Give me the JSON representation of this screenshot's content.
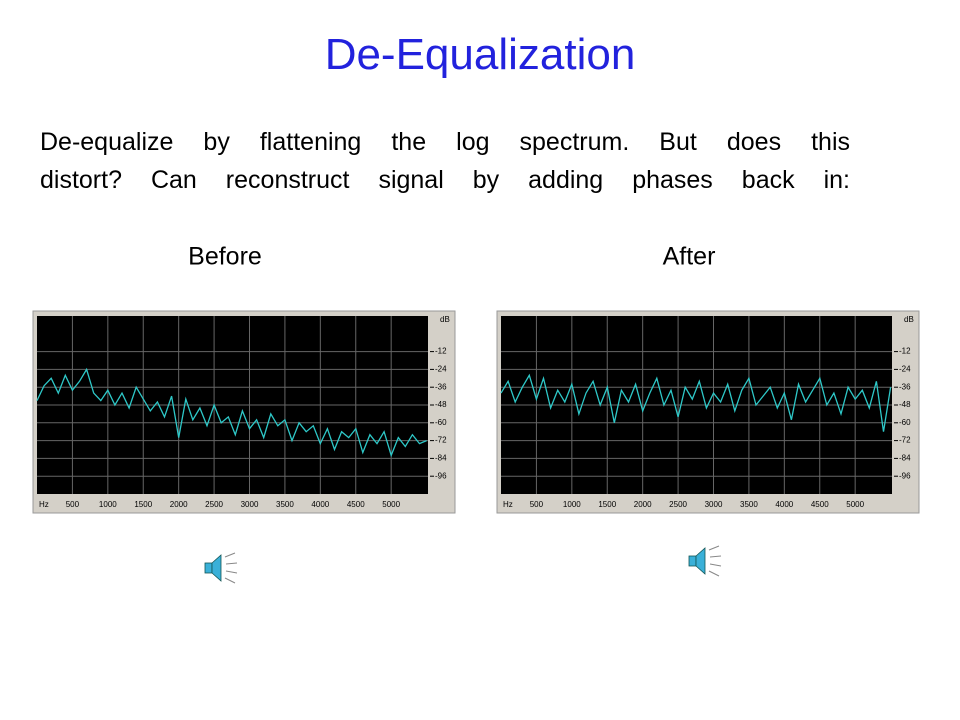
{
  "title": "De-Equalization",
  "text": [
    "De-equalize by flattening the log spectrum.  But does this",
    "distort? Can reconstruct signal by adding phases back in:"
  ],
  "chart_data": [
    {
      "type": "line",
      "title": "Before",
      "xlabel": "Hz",
      "ylabel": "dB",
      "color": "#2ec8c8",
      "grid": true,
      "xlim": [
        0,
        5520
      ],
      "ylim": [
        -108,
        12
      ],
      "xticks": [
        500,
        1000,
        1500,
        2000,
        2500,
        3000,
        3500,
        4000,
        4500,
        5000
      ],
      "yticks": [
        -12,
        -24,
        -36,
        -48,
        -60,
        -72,
        -84,
        -96
      ],
      "x": [
        0,
        100,
        200,
        300,
        400,
        500,
        600,
        700,
        800,
        900,
        1000,
        1100,
        1200,
        1300,
        1400,
        1500,
        1600,
        1700,
        1800,
        1900,
        2000,
        2100,
        2200,
        2300,
        2400,
        2500,
        2600,
        2700,
        2800,
        2900,
        3000,
        3100,
        3200,
        3300,
        3400,
        3500,
        3600,
        3700,
        3800,
        3900,
        4000,
        4100,
        4200,
        4300,
        4400,
        4500,
        4600,
        4700,
        4800,
        4900,
        5000,
        5100,
        5200,
        5300,
        5400,
        5500
      ],
      "values": [
        -45,
        -35,
        -30,
        -40,
        -28,
        -38,
        -32,
        -24,
        -40,
        -45,
        -38,
        -48,
        -40,
        -50,
        -36,
        -44,
        -52,
        -46,
        -56,
        -42,
        -70,
        -44,
        -58,
        -50,
        -62,
        -48,
        -60,
        -56,
        -68,
        -52,
        -64,
        -58,
        -70,
        -54,
        -62,
        -58,
        -72,
        -60,
        -66,
        -62,
        -74,
        -64,
        -78,
        -66,
        -70,
        -64,
        -80,
        -68,
        -74,
        -66,
        -82,
        -70,
        -76,
        -68,
        -74,
        -72
      ]
    },
    {
      "type": "line",
      "title": "After",
      "xlabel": "Hz",
      "ylabel": "dB",
      "color": "#2ec8c8",
      "grid": true,
      "xlim": [
        0,
        5520
      ],
      "ylim": [
        -108,
        12
      ],
      "xticks": [
        500,
        1000,
        1500,
        2000,
        2500,
        3000,
        3500,
        4000,
        4500,
        5000
      ],
      "yticks": [
        -12,
        -24,
        -36,
        -48,
        -60,
        -72,
        -84,
        -96
      ],
      "x": [
        0,
        100,
        200,
        300,
        400,
        500,
        600,
        700,
        800,
        900,
        1000,
        1100,
        1200,
        1300,
        1400,
        1500,
        1600,
        1700,
        1800,
        1900,
        2000,
        2100,
        2200,
        2300,
        2400,
        2500,
        2600,
        2700,
        2800,
        2900,
        3000,
        3100,
        3200,
        3300,
        3400,
        3500,
        3600,
        3700,
        3800,
        3900,
        4000,
        4100,
        4200,
        4300,
        4400,
        4500,
        4600,
        4700,
        4800,
        4900,
        5000,
        5100,
        5200,
        5300,
        5400,
        5500
      ],
      "values": [
        -40,
        -32,
        -46,
        -36,
        -28,
        -44,
        -30,
        -50,
        -38,
        -46,
        -34,
        -54,
        -40,
        -32,
        -48,
        -36,
        -60,
        -38,
        -46,
        -34,
        -52,
        -40,
        -30,
        -48,
        -38,
        -56,
        -36,
        -44,
        -32,
        -50,
        -40,
        -46,
        -34,
        -52,
        -38,
        -30,
        -48,
        -42,
        -36,
        -50,
        -40,
        -58,
        -34,
        -46,
        -38,
        -30,
        -48,
        -40,
        -54,
        -36,
        -44,
        -38,
        -50,
        -32,
        -66,
        -36
      ]
    }
  ]
}
